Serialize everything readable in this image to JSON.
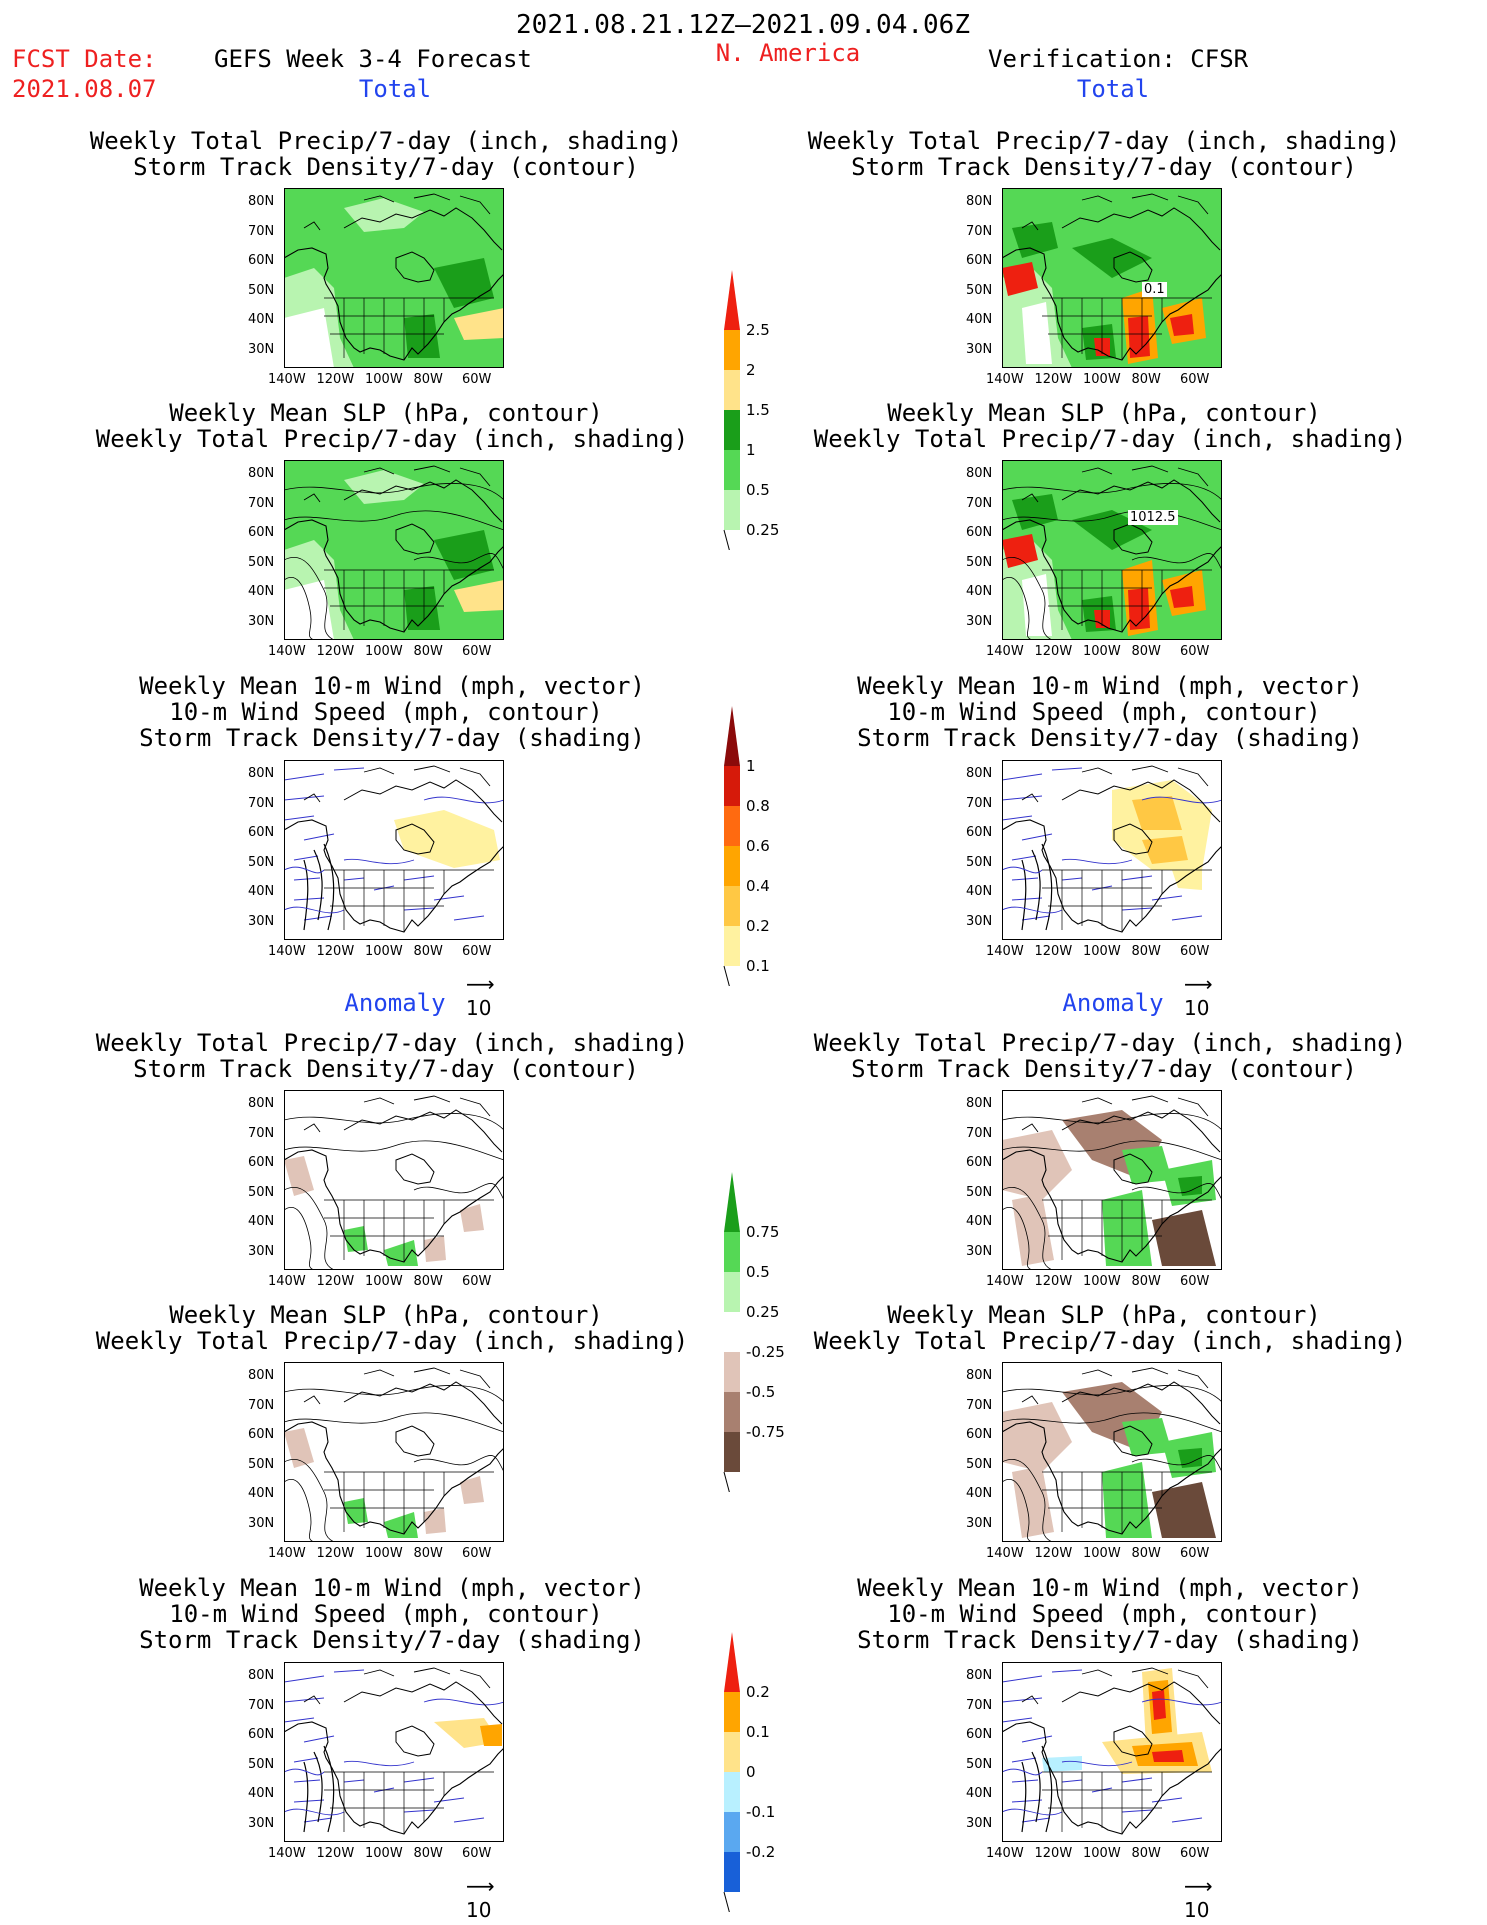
{
  "header": {
    "period": "2021.08.21.12Z–2021.09.04.06Z",
    "fcst_label": "FCST Date:",
    "fcst_date": "2021.08.07",
    "product": "GEFS Week 3-4 Forecast",
    "region": "N. America",
    "verification": "Verification: CFSR"
  },
  "sections": {
    "total": "Total",
    "anomaly": "Anomaly"
  },
  "titles": {
    "precip_track_1": "Weekly Total Precip/7-day (inch, shading)",
    "precip_track_2": "Storm Track Density/7-day (contour)",
    "slp_1": "Weekly Mean SLP (hPa, contour)",
    "slp_2": "Weekly Total Precip/7-day (inch, shading)",
    "wind_1": "Weekly Mean 10-m Wind (mph, vector)",
    "wind_2": "10-m Wind Speed (mph, contour)",
    "wind_3": "Storm Track Density/7-day (shading)"
  },
  "axes": {
    "lat": [
      "80N",
      "70N",
      "60N",
      "50N",
      "40N",
      "30N"
    ],
    "lon": [
      "140W",
      "120W",
      "100W",
      "80W",
      "60W"
    ]
  },
  "map_labels": {
    "storm_contour": "0.1",
    "slp_contour": "1012.5"
  },
  "vector_ref": "10",
  "scales": {
    "precip_total": {
      "labels": [
        "2.5",
        "2",
        "1.5",
        "1",
        "0.5",
        "0.25"
      ],
      "colors": [
        "#ee2010",
        "#ffa500",
        "#ffe38a",
        "#1a9e1a",
        "#55d855",
        "#b8f4b0"
      ]
    },
    "storm_total": {
      "labels": [
        "1",
        "0.8",
        "0.6",
        "0.4",
        "0.2",
        "0.1"
      ],
      "colors": [
        "#8b0a0a",
        "#d61a0a",
        "#ff6a10",
        "#ffa500",
        "#ffc844",
        "#fff2a0"
      ]
    },
    "precip_anom": {
      "labels": [
        "0.75",
        "0.5",
        "0.25",
        "-0.25",
        "-0.5",
        "-0.75"
      ],
      "colors": [
        "#1a9e1a",
        "#55d855",
        "#b8f4b0",
        "#ffffff",
        "#e0c4b8",
        "#a88070",
        "#6a4a3a"
      ]
    },
    "storm_anom": {
      "labels": [
        "0.2",
        "0.1",
        "0",
        "-0.1",
        "-0.2"
      ],
      "colors": [
        "#ee2010",
        "#ffa500",
        "#ffe38a",
        "#b8f0ff",
        "#5aa8f0",
        "#1860d8"
      ]
    }
  }
}
